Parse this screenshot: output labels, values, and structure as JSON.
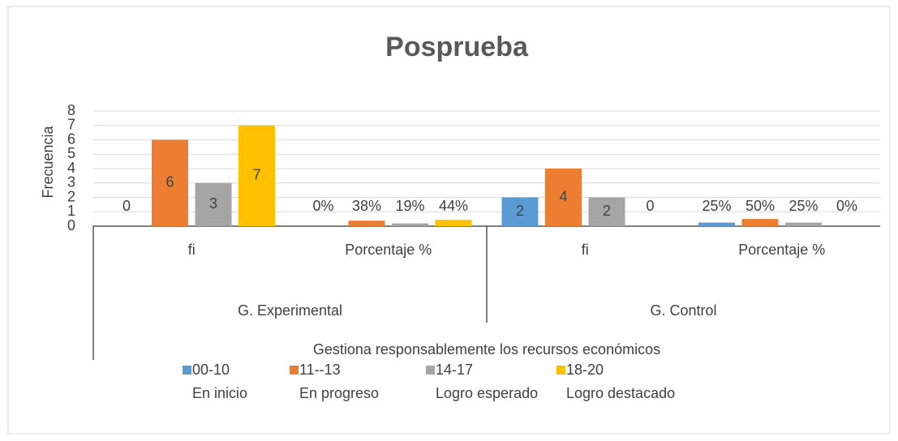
{
  "chart_data": {
    "type": "bar",
    "title": "Posprueba",
    "y_label": "Frecuencia",
    "x_label": "Gestiona responsablemente los recursos económicos",
    "categories": [
      "fi",
      "Porcentaje %",
      "fi",
      "Porcentaje %"
    ],
    "groups": [
      "G. Experimental",
      "G. Control"
    ],
    "series": [
      {
        "name": "00-10\nEn inicio",
        "color": "#5b9bd5",
        "values": [
          0,
          0,
          2,
          0.25
        ],
        "value_labels": [
          "0",
          "0%",
          "2",
          "25%"
        ]
      },
      {
        "name": "11--13\nEn progreso",
        "color": "#ed7d31",
        "values": [
          6,
          0.38,
          4,
          0.5
        ],
        "value_labels": [
          "6",
          "38%",
          "4",
          "50%"
        ]
      },
      {
        "name": "14-17\nLogro esperado",
        "color": "#a5a5a5",
        "values": [
          3,
          0.19,
          2,
          0.25
        ],
        "value_labels": [
          "3",
          "19%",
          "2",
          "25%"
        ]
      },
      {
        "name": "18-20\nLogro destacado",
        "color": "#ffc000",
        "values": [
          7,
          0.44,
          0,
          0
        ],
        "value_labels": [
          "7",
          "44%",
          "0",
          "0%"
        ]
      }
    ],
    "ylim": [
      0,
      8
    ],
    "yticks": [
      0,
      1,
      2,
      3,
      4,
      5,
      6,
      7,
      8
    ],
    "grid": true,
    "legend": "bottom"
  }
}
